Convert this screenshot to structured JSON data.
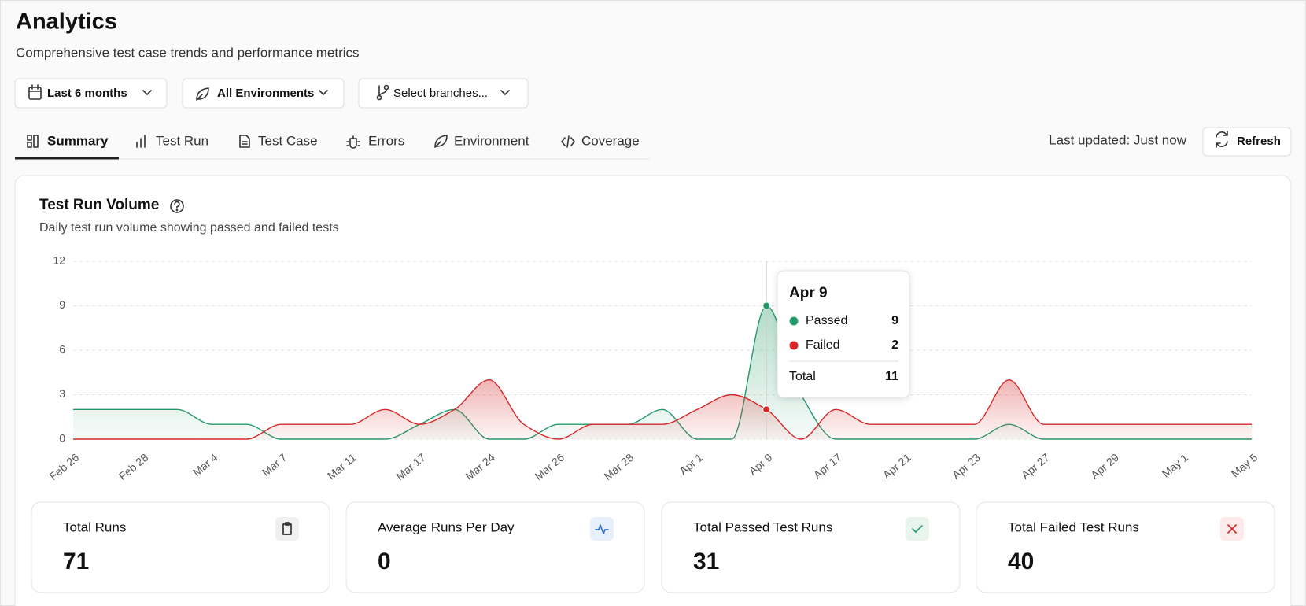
{
  "header": {
    "title": "Analytics",
    "subtitle": "Comprehensive test case trends and performance metrics"
  },
  "filters": [
    "Last 6 months",
    "All Environments",
    "Select branches..."
  ],
  "tabs": [
    "Summary",
    "Test Run",
    "Test Case",
    "Errors",
    "Environment",
    "Coverage"
  ],
  "status": {
    "last_updated": "Last updated: Just now",
    "refresh": "Refresh"
  },
  "chart_data": {
    "type": "area",
    "title": "Test Run Volume",
    "subtitle": "Daily test run volume showing passed and failed tests",
    "categories": [
      "Feb 26",
      null,
      "Feb 28",
      null,
      "Mar 4",
      null,
      "Mar 7",
      null,
      "Mar 11",
      null,
      "Mar 17",
      null,
      "Mar 24",
      null,
      "Mar 26",
      null,
      "Mar 28",
      null,
      "Apr 1",
      null,
      "Apr 9",
      null,
      "Apr 17",
      null,
      "Apr 21",
      null,
      "Apr 23",
      null,
      "Apr 27",
      null,
      "Apr 29",
      null,
      "May 1",
      null,
      "May 5"
    ],
    "series": [
      {
        "name": "Passed",
        "color": "#259a68",
        "values": [
          2,
          2,
          2,
          2,
          1,
          1,
          0,
          0,
          0,
          0,
          1,
          2,
          0,
          0,
          1,
          1,
          1,
          2,
          0,
          0,
          9,
          3,
          0,
          0,
          0,
          0,
          0,
          1,
          0,
          0,
          0,
          0,
          0,
          0,
          0
        ]
      },
      {
        "name": "Failed",
        "color": "#d62828",
        "values": [
          0,
          0,
          0,
          0,
          0,
          0,
          1,
          1,
          1,
          2,
          1,
          2,
          4,
          1,
          0,
          1,
          1,
          1,
          2,
          3,
          2,
          0,
          2,
          1,
          1,
          1,
          1,
          4,
          1,
          1,
          1,
          1,
          1,
          1,
          1
        ]
      }
    ],
    "ylim": [
      0,
      12
    ],
    "yticks": [
      0,
      3,
      6,
      9,
      12
    ],
    "grid": true,
    "tooltip": {
      "total_label": "Total",
      "total": 11
    }
  },
  "stats": [
    {
      "label": "Total Runs",
      "value": 71
    },
    {
      "label": "Average Runs Per Day",
      "value": 0
    },
    {
      "label": "Total Passed Test Runs",
      "value": 31
    },
    {
      "label": "Total Failed Test Runs",
      "value": 40
    }
  ]
}
